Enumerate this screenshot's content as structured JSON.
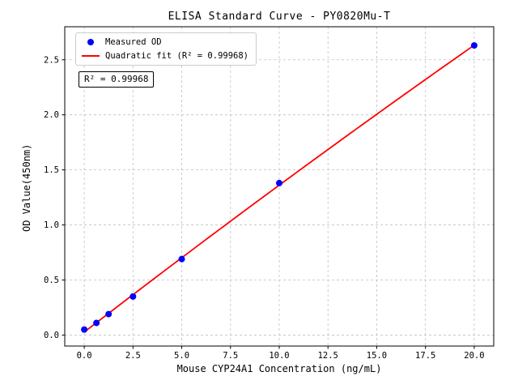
{
  "chart_data": {
    "type": "scatter",
    "title": "ELISA Standard Curve - PY0820Mu-T",
    "xlabel": "Mouse CYP24A1 Concentration (ng/mL)",
    "ylabel": "OD Value(450nm)",
    "xlim": [
      -1,
      21
    ],
    "ylim": [
      -0.1,
      2.8
    ],
    "xticks": [
      0.0,
      2.5,
      5.0,
      7.5,
      10.0,
      12.5,
      15.0,
      17.5,
      20.0
    ],
    "yticks": [
      0.0,
      0.5,
      1.0,
      1.5,
      2.0,
      2.5
    ],
    "grid": true,
    "annotation": "R² = 0.99968",
    "r_squared": 0.99968,
    "legend": {
      "position": "upper-left",
      "entries": [
        {
          "label": "Measured OD",
          "marker": "circle",
          "color": "#0000ff"
        },
        {
          "label": "Quadratic fit (R² = 0.99968)",
          "marker": "line",
          "color": "#ff0000"
        }
      ]
    },
    "series": [
      {
        "name": "Measured OD",
        "type": "scatter",
        "color": "#0000ff",
        "x": [
          0,
          0.625,
          1.25,
          2.5,
          5,
          10,
          20
        ],
        "y": [
          0.05,
          0.11,
          0.19,
          0.35,
          0.69,
          1.38,
          2.63
        ]
      },
      {
        "name": "Quadratic fit",
        "type": "line",
        "color": "#ff0000",
        "fit": {
          "a": 0.0269,
          "b": 0.1366,
          "c": -0.000315
        },
        "x_range": [
          0,
          20
        ]
      }
    ]
  }
}
